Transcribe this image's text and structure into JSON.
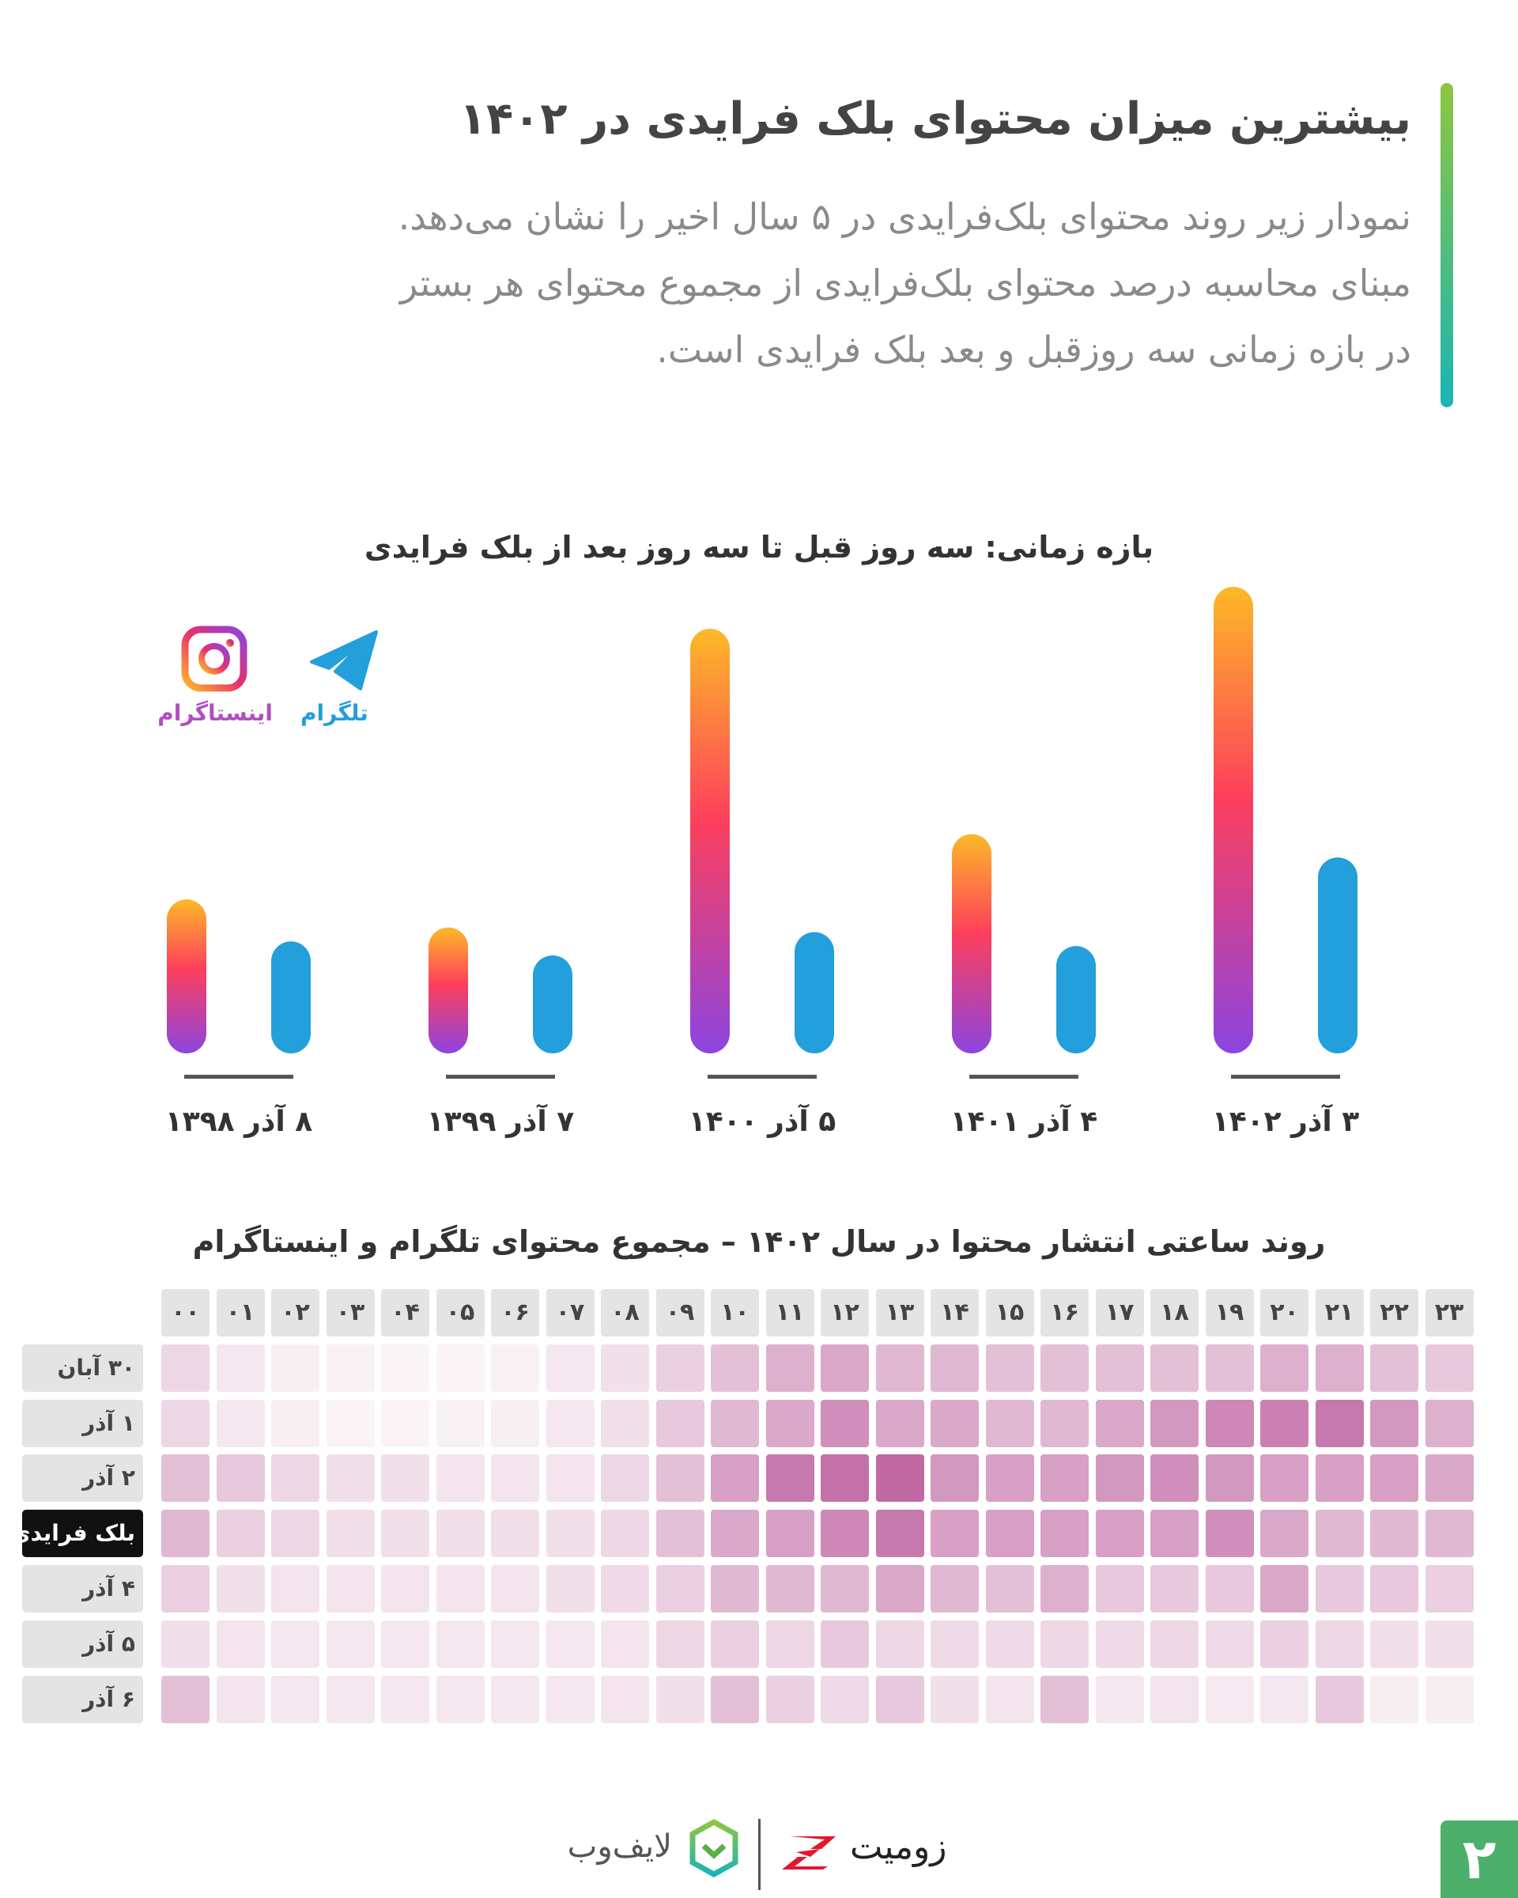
{
  "header": {
    "title": "بیشترین میزان محتوای بلک فرایدی در ۱۴۰۲",
    "description_lines": [
      "نمودار زیر روند محتوای بلک‌فرایدی در ۵ سال اخیر را نشان می‌دهد.",
      "مبنای محاسبه درصد محتوای بلک‌فرایدی از مجموع محتوای هر بستر",
      "در بازه زمانی سه روزقبل و بعد بلک فرایدی است."
    ],
    "accent_colors": [
      "#8dc63f",
      "#1ab5b5"
    ]
  },
  "chart_data": [
    {
      "type": "bar",
      "title": "بازه زمانی: سه روز قبل تا سه روز بعد از بلک فرایدی",
      "categories": [
        "۸ آذر ۱۳۹۸",
        "۷ آذر ۱۳۹۹",
        "۵ آذر ۱۴۰۰",
        "۴ آذر ۱۴۰۱",
        "۳ آذر ۱۴۰۲"
      ],
      "series": [
        {
          "name": "اینستاگرام",
          "icon": "instagram-icon",
          "colors": [
            "#fdb927",
            "#fd3f5c",
            "#8c45e0"
          ],
          "values": [
            33,
            27,
            91,
            47,
            100
          ]
        },
        {
          "name": "تلگرام",
          "icon": "telegram-icon",
          "colors": [
            "#239fdb"
          ],
          "values": [
            24,
            21,
            26,
            23,
            42
          ]
        }
      ],
      "legend": "top-left",
      "grid": false
    },
    {
      "type": "heatmap",
      "title": "روند ساعتی انتشار محتوا در سال ۱۴۰۲ – مجموع محتوای تلگرام و اینستاگرام",
      "x": [
        "۰۰",
        "۰۱",
        "۰۲",
        "۰۳",
        "۰۴",
        "۰۵",
        "۰۶",
        "۰۷",
        "۰۸",
        "۰۹",
        "۱۰",
        "۱۱",
        "۱۲",
        "۱۳",
        "۱۴",
        "۱۵",
        "۱۶",
        "۱۷",
        "۱۸",
        "۱۹",
        "۲۰",
        "۲۱",
        "۲۲",
        "۲۳"
      ],
      "y": [
        "۳۰ آبان",
        "۱ آذر",
        "۲ آذر",
        "بلک فرایدی",
        "۴ آذر",
        "۵ آذر",
        "۶ آذر"
      ],
      "highlight_row": "بلک فرایدی",
      "color_range": [
        "#fbf7f8",
        "#b9599a"
      ],
      "values": [
        [
          2,
          1,
          0.5,
          0.3,
          0.2,
          0.2,
          0.3,
          1,
          1.5,
          2.5,
          3.5,
          4.5,
          5,
          4,
          4,
          3.5,
          3.5,
          3.5,
          3.5,
          3.5,
          4.5,
          4.5,
          3.5,
          3
        ],
        [
          2,
          1,
          0.5,
          0.2,
          0.2,
          0.3,
          0.5,
          1,
          1.5,
          3,
          4,
          5,
          6.5,
          5,
          5,
          4,
          4,
          5,
          6,
          7,
          7.5,
          8,
          6,
          4.5
        ],
        [
          3.5,
          3,
          2,
          1.5,
          1.5,
          1.2,
          1.2,
          1.2,
          2,
          3.5,
          5.5,
          8,
          8.5,
          9,
          6,
          5.5,
          5.5,
          6,
          6.5,
          6,
          5.5,
          5.5,
          5.5,
          5
        ],
        [
          4,
          2.5,
          2,
          1.5,
          1.5,
          1.5,
          1.5,
          1.5,
          2,
          3.5,
          5,
          5.5,
          7,
          8,
          5.5,
          5.5,
          5.5,
          5.5,
          5.5,
          6.5,
          5,
          4,
          4,
          4
        ],
        [
          2.5,
          1.5,
          1.2,
          1.2,
          1.2,
          1.2,
          1.2,
          1.5,
          1.8,
          2.5,
          4,
          4,
          4,
          5,
          4,
          3.5,
          4.5,
          3,
          3,
          3,
          5,
          3,
          3,
          2.5
        ],
        [
          1.5,
          1.2,
          1,
          1,
          1,
          1,
          1,
          1,
          1.2,
          2,
          2.5,
          2,
          3,
          2,
          1.8,
          1.8,
          2,
          1.8,
          2,
          1.8,
          2.5,
          2,
          1.5,
          1.5
        ],
        [
          3.5,
          1.2,
          1,
          1,
          1,
          1,
          1,
          1,
          1.2,
          1.5,
          3.5,
          2.5,
          1.8,
          3,
          1.5,
          1.2,
          3.5,
          1,
          1.2,
          0.8,
          1,
          3,
          0.6,
          0.6
        ]
      ],
      "value_range": [
        0,
        10
      ]
    }
  ],
  "footer": {
    "logos": [
      "زومیت",
      "لایف‌وب"
    ],
    "page_number": "۲",
    "page_number_color": "#4caf6a"
  }
}
